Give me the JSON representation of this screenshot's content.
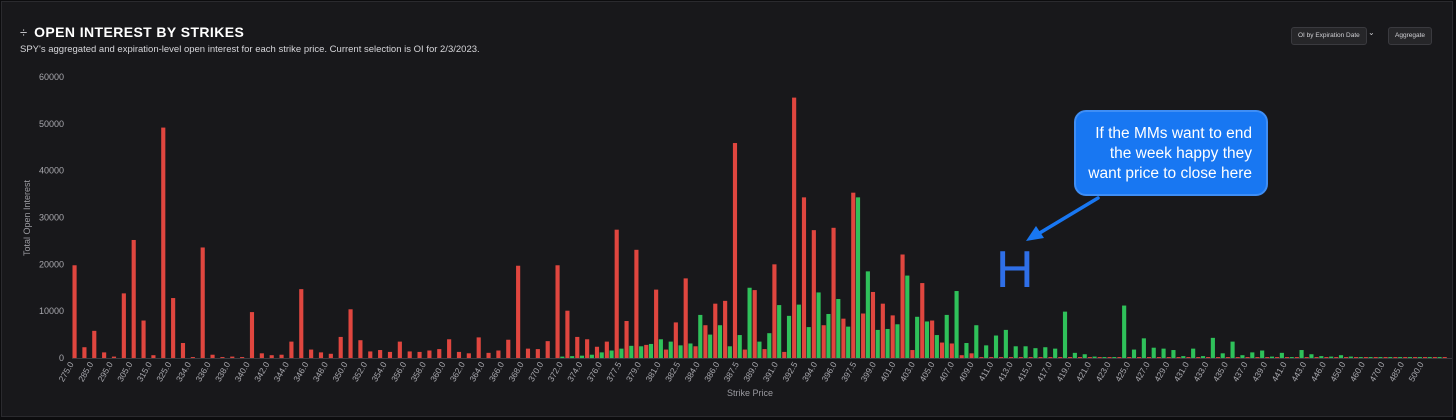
{
  "header": {
    "title": "OPEN INTEREST BY STRIKES",
    "subtitle": "SPY's aggregated and expiration-level open interest for each strike price. Current selection is OI for 2/3/2023.",
    "title_icon": "drag-handle-icon"
  },
  "controls": {
    "expiration_button": "OI by Expiration Date",
    "aggregate_button": "Aggregate",
    "chevron_icon": "chevron-down-icon"
  },
  "annotation": {
    "lines": [
      "If the MMs want to end",
      "the week happy they",
      "want price to close here"
    ],
    "marker": "H",
    "color": "#1877f2"
  },
  "chart_data": {
    "type": "bar",
    "xlabel": "Strike Price",
    "ylabel": "Total Open Interest",
    "ylim": [
      0,
      60000
    ],
    "yticks": [
      0,
      10000,
      20000,
      30000,
      40000,
      50000,
      60000
    ],
    "grid": false,
    "colors": {
      "puts": "#e0463f",
      "calls": "#2fc15a"
    },
    "x_tick_labels": [
      "275.0",
      "285.0",
      "295.0",
      "305.0",
      "315.0",
      "325.0",
      "334.0",
      "336.0",
      "338.0",
      "340.0",
      "342.0",
      "344.0",
      "346.0",
      "348.0",
      "350.0",
      "352.0",
      "354.0",
      "356.0",
      "358.0",
      "360.0",
      "362.0",
      "364.0",
      "366.0",
      "368.0",
      "370.0",
      "372.0",
      "374.0",
      "376.0",
      "377.5",
      "379.0",
      "381.0",
      "382.5",
      "384.0",
      "386.0",
      "387.5",
      "389.0",
      "391.0",
      "392.5",
      "394.0",
      "396.0",
      "397.5",
      "399.0",
      "401.0",
      "403.0",
      "405.0",
      "407.0",
      "409.0",
      "411.0",
      "413.0",
      "415.0",
      "417.0",
      "419.0",
      "421.0",
      "423.0",
      "425.0",
      "427.0",
      "429.0",
      "431.0",
      "433.0",
      "435.0",
      "437.0",
      "439.0",
      "441.0",
      "443.0",
      "446.0",
      "450.0",
      "460.0",
      "470.0",
      "485.0",
      "500.0"
    ],
    "series": [
      {
        "name": "",
        "color": "#e0463f",
        "values": [
          19800,
          2300,
          5800,
          1200,
          300,
          13800,
          25200,
          8000,
          600,
          49200,
          12800,
          3200,
          200,
          23600,
          700,
          200,
          300,
          200,
          9800,
          1000,
          600,
          700,
          3500,
          14700,
          1800,
          1200,
          900,
          4500,
          10400,
          3800,
          1400,
          1700,
          1300,
          3500,
          1400,
          1300,
          1600,
          1900,
          4000,
          1300,
          1000,
          4400,
          1100,
          1600,
          3900,
          19700,
          2000,
          1900,
          3600,
          19800,
          10100,
          4500,
          4000,
          2400,
          3500,
          27400,
          7900,
          23100,
          2800,
          14600,
          1800,
          7600,
          17000,
          2500,
          7000,
          11600,
          12200,
          45900,
          1800,
          14500,
          1900,
          20000,
          1300,
          55600,
          34300,
          27300,
          7000,
          27800,
          8400,
          35300,
          9500,
          14100,
          11600,
          9100,
          22100,
          1700,
          16000,
          8000,
          3300,
          3100,
          600,
          1000,
          200,
          200,
          200,
          200,
          200,
          200,
          200,
          200,
          200,
          200,
          200,
          200,
          200,
          200,
          200,
          200,
          200,
          200,
          200,
          200,
          200,
          200,
          200,
          200,
          200,
          200,
          200,
          200,
          200,
          200,
          200,
          200,
          200,
          200,
          200,
          200,
          200,
          200,
          200,
          200,
          200,
          200,
          200,
          200,
          200,
          200,
          200,
          200
        ]
      },
      {
        "name": "",
        "color": "#2fc15a",
        "values": [
          0,
          0,
          0,
          0,
          0,
          0,
          0,
          0,
          0,
          0,
          0,
          0,
          0,
          0,
          0,
          0,
          0,
          0,
          0,
          0,
          0,
          0,
          0,
          0,
          0,
          0,
          0,
          0,
          0,
          0,
          0,
          0,
          0,
          0,
          0,
          0,
          0,
          0,
          0,
          0,
          0,
          0,
          0,
          0,
          0,
          0,
          0,
          0,
          0,
          300,
          400,
          500,
          700,
          1200,
          1600,
          2000,
          2600,
          2500,
          3000,
          4000,
          3500,
          2700,
          3100,
          9200,
          5000,
          7000,
          2500,
          4900,
          15000,
          3500,
          5300,
          11300,
          9000,
          11400,
          6600,
          14000,
          9400,
          12600,
          6700,
          34300,
          18500,
          6000,
          6200,
          7200,
          17600,
          8800,
          7800,
          4900,
          9200,
          14300,
          3200,
          7000,
          2700,
          4800,
          6000,
          2500,
          2500,
          2100,
          2300,
          2000,
          9900,
          1100,
          800,
          300,
          200,
          200,
          11200,
          1800,
          4200,
          2200,
          2000,
          1700,
          400,
          2000,
          400,
          4300,
          1000,
          3500,
          600,
          1200,
          1600,
          300,
          1100,
          200,
          1700,
          800,
          400,
          300,
          600,
          300,
          200,
          200,
          200,
          200,
          200,
          200,
          200,
          200,
          200
        ]
      }
    ]
  }
}
